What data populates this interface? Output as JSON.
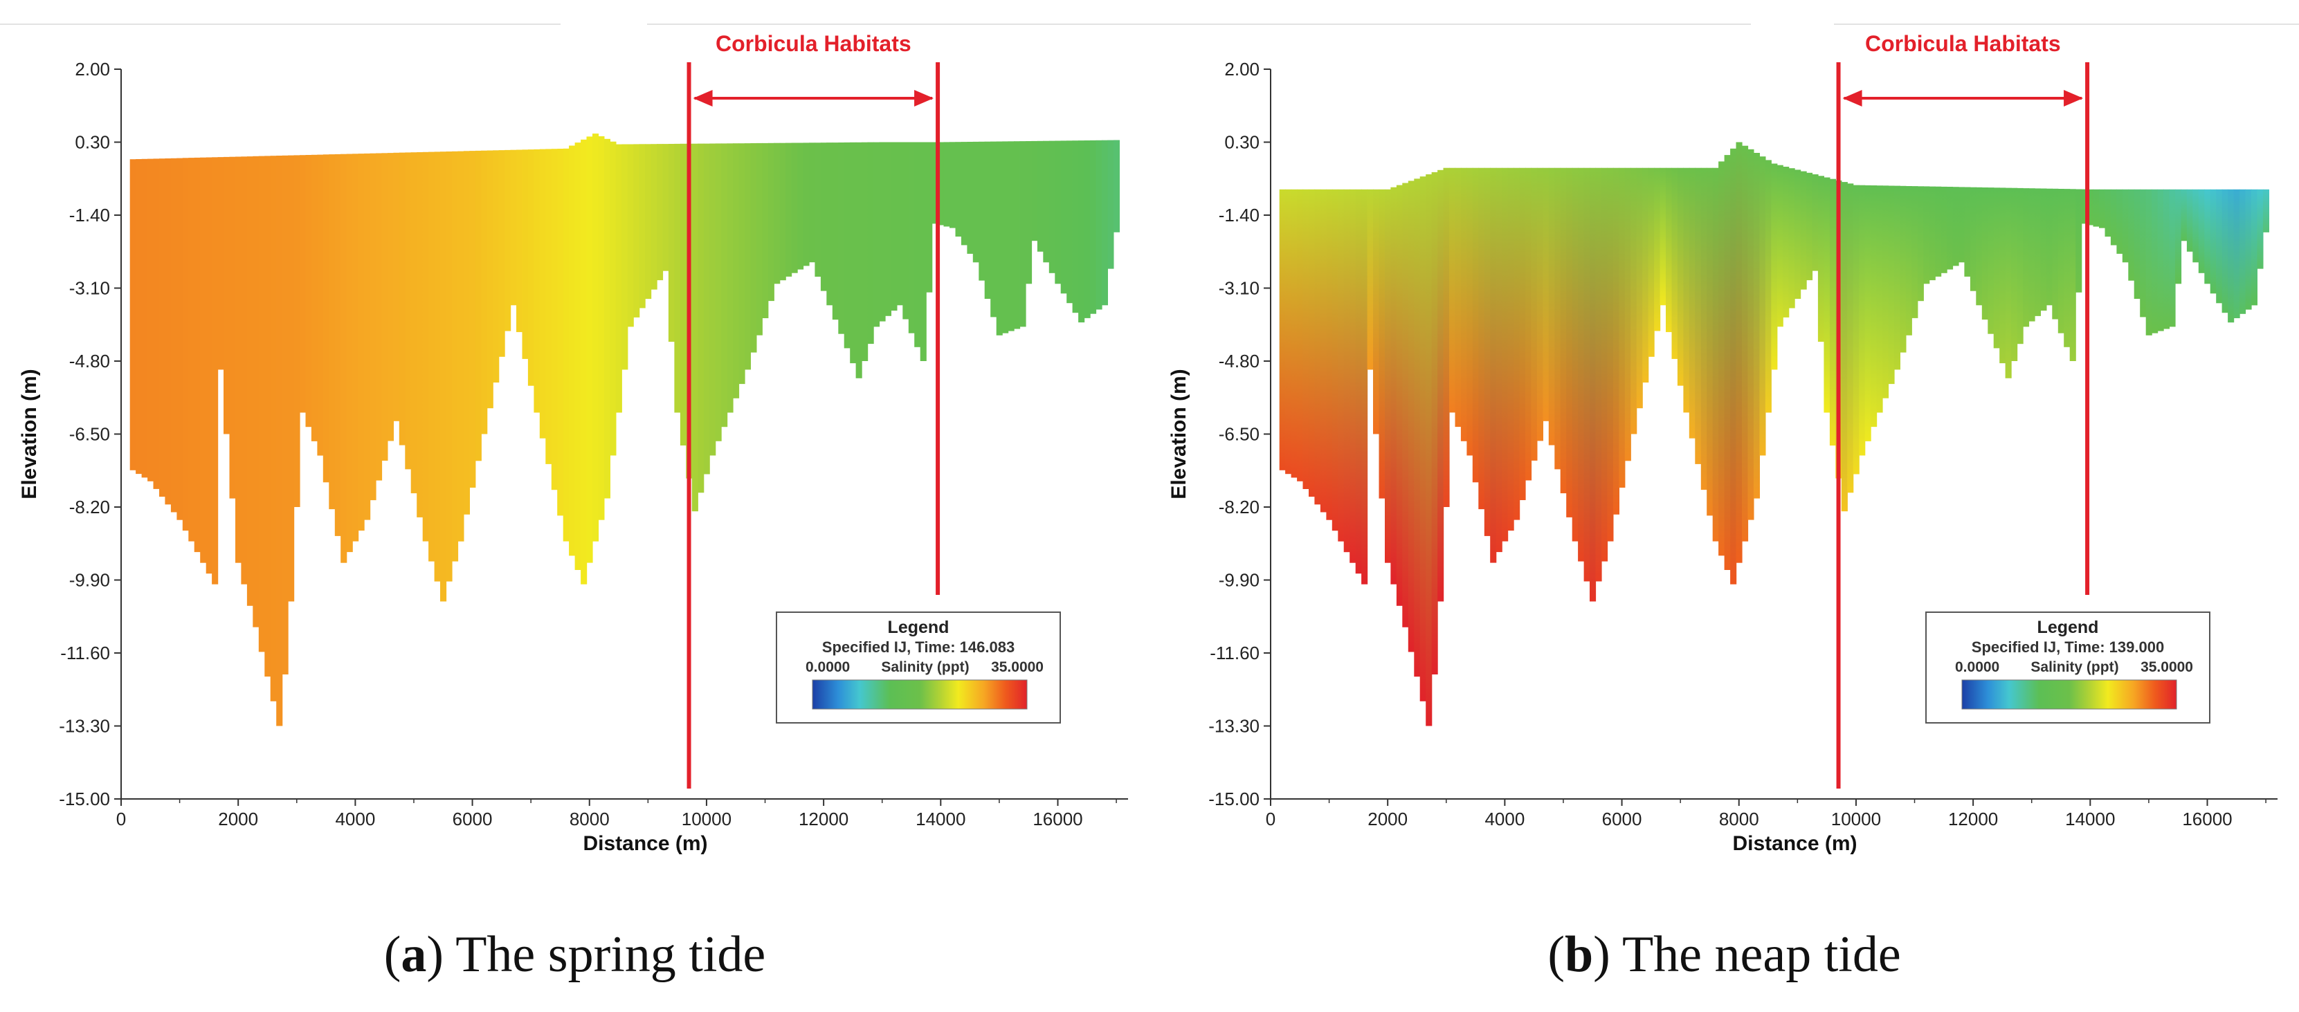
{
  "chart_data": [
    {
      "id": "a",
      "type": "heatmap",
      "caption_letter": "a",
      "caption_text": " The spring tide",
      "xlabel": "Distance (m)",
      "ylabel": "Elevation (m)",
      "xlim": [
        0,
        17200
      ],
      "ylim": [
        -15.0,
        2.0
      ],
      "xticks": [
        0,
        2000,
        4000,
        6000,
        8000,
        10000,
        12000,
        14000,
        16000
      ],
      "yticks": [
        "2.00",
        "0.30",
        "-1.40",
        "-3.10",
        "-4.80",
        "-6.50",
        "-8.20",
        "-9.90",
        "-11.60",
        "-13.30",
        "-15.00"
      ],
      "annotation": "Corbicula Habitats",
      "habitat_range_m": [
        9700,
        13950
      ],
      "legend": {
        "title": "Legend",
        "subtitle": "Specified IJ, Time: 146.083",
        "min_label": "0.0000",
        "variable": "Salinity (ppt)",
        "max_label": "35.0000"
      },
      "color_range": [
        0,
        35
      ],
      "surface_profile": [
        [
          150,
          -0.1
        ],
        [
          7600,
          0.15
        ],
        [
          8100,
          0.5
        ],
        [
          8500,
          0.25
        ],
        [
          13000,
          0.3
        ],
        [
          14000,
          0.3
        ],
        [
          17100,
          0.35
        ]
      ],
      "bottom_profile": [
        [
          150,
          -7.3
        ],
        [
          500,
          -7.6
        ],
        [
          1000,
          -8.5
        ],
        [
          1600,
          -10.0
        ],
        [
          1700,
          -5.0
        ],
        [
          2000,
          -9.5
        ],
        [
          2300,
          -11.0
        ],
        [
          2700,
          -13.3
        ],
        [
          2850,
          -11.5
        ],
        [
          3100,
          -6.0
        ],
        [
          3400,
          -7.0
        ],
        [
          3800,
          -9.5
        ],
        [
          4200,
          -8.5
        ],
        [
          4700,
          -6.2
        ],
        [
          5200,
          -9.0
        ],
        [
          5500,
          -10.4
        ],
        [
          5800,
          -9.0
        ],
        [
          6200,
          -6.5
        ],
        [
          6700,
          -3.5
        ],
        [
          7100,
          -6.0
        ],
        [
          7600,
          -9.0
        ],
        [
          7900,
          -10.0
        ],
        [
          8300,
          -8.0
        ],
        [
          8700,
          -4.0
        ],
        [
          9300,
          -2.7
        ],
        [
          9500,
          -6.0
        ],
        [
          9800,
          -8.3
        ],
        [
          10100,
          -7.0
        ],
        [
          10700,
          -5.0
        ],
        [
          11200,
          -3.0
        ],
        [
          11800,
          -2.5
        ],
        [
          12400,
          -4.5
        ],
        [
          12600,
          -5.2
        ],
        [
          12900,
          -4.0
        ],
        [
          13300,
          -3.5
        ],
        [
          13700,
          -4.8
        ],
        [
          13900,
          -1.6
        ],
        [
          14200,
          -1.7
        ],
        [
          14600,
          -2.5
        ],
        [
          15000,
          -4.2
        ],
        [
          15400,
          -4.0
        ],
        [
          15600,
          -2.0
        ],
        [
          16000,
          -3.0
        ],
        [
          16400,
          -3.9
        ],
        [
          16800,
          -3.5
        ],
        [
          17000,
          -1.8
        ]
      ],
      "salinity_stops": [
        {
          "distance": 0,
          "salinity": 29.5
        },
        {
          "distance": 3000,
          "salinity": 28.8
        },
        {
          "distance": 6000,
          "salinity": 26.5
        },
        {
          "distance": 8200,
          "salinity": 23.5
        },
        {
          "distance": 10000,
          "salinity": 20.0
        },
        {
          "distance": 12000,
          "salinity": 17.0
        },
        {
          "distance": 14000,
          "salinity": 15.5
        },
        {
          "distance": 15500,
          "salinity": 15.0
        },
        {
          "distance": 17000,
          "salinity": 11.5
        }
      ],
      "salinity_depth_gradient": 0
    },
    {
      "id": "b",
      "type": "heatmap",
      "caption_letter": "b",
      "caption_text": " The neap tide",
      "xlabel": "Distance (m)",
      "ylabel": "Elevation (m)",
      "xlim": [
        0,
        17200
      ],
      "ylim": [
        -15.0,
        2.0
      ],
      "xticks": [
        0,
        2000,
        4000,
        6000,
        8000,
        10000,
        12000,
        14000,
        16000
      ],
      "yticks": [
        "2.00",
        "0.30",
        "-1.40",
        "-3.10",
        "-4.80",
        "-6.50",
        "-8.20",
        "-9.90",
        "-11.60",
        "-13.30",
        "-15.00"
      ],
      "annotation": "Corbicula Habitats",
      "habitat_range_m": [
        9700,
        13950
      ],
      "legend": {
        "title": "Legend",
        "subtitle": "Specified IJ, Time: 139.000",
        "min_label": "0.0000",
        "variable": "Salinity (ppt)",
        "max_label": "35.0000"
      },
      "color_range": [
        0,
        35
      ],
      "surface_profile": [
        [
          150,
          -0.8
        ],
        [
          2000,
          -0.8
        ],
        [
          3000,
          -0.3
        ],
        [
          7600,
          -0.3
        ],
        [
          8000,
          0.3
        ],
        [
          8600,
          -0.2
        ],
        [
          10000,
          -0.7
        ],
        [
          14000,
          -0.8
        ],
        [
          17100,
          -0.8
        ]
      ],
      "bottom_profile": [
        [
          150,
          -7.3
        ],
        [
          500,
          -7.6
        ],
        [
          1000,
          -8.5
        ],
        [
          1600,
          -10.0
        ],
        [
          1700,
          -5.0
        ],
        [
          2000,
          -9.5
        ],
        [
          2300,
          -11.0
        ],
        [
          2700,
          -13.3
        ],
        [
          2850,
          -11.5
        ],
        [
          3100,
          -6.0
        ],
        [
          3400,
          -7.0
        ],
        [
          3800,
          -9.5
        ],
        [
          4200,
          -8.5
        ],
        [
          4700,
          -6.2
        ],
        [
          5200,
          -9.0
        ],
        [
          5500,
          -10.4
        ],
        [
          5800,
          -9.0
        ],
        [
          6200,
          -6.5
        ],
        [
          6700,
          -3.5
        ],
        [
          7100,
          -6.0
        ],
        [
          7600,
          -9.0
        ],
        [
          7900,
          -10.0
        ],
        [
          8300,
          -8.0
        ],
        [
          8700,
          -4.0
        ],
        [
          9300,
          -2.7
        ],
        [
          9500,
          -6.0
        ],
        [
          9800,
          -8.3
        ],
        [
          10100,
          -7.0
        ],
        [
          10700,
          -5.0
        ],
        [
          11200,
          -3.0
        ],
        [
          11800,
          -2.5
        ],
        [
          12400,
          -4.5
        ],
        [
          12600,
          -5.2
        ],
        [
          12900,
          -4.0
        ],
        [
          13300,
          -3.5
        ],
        [
          13700,
          -4.8
        ],
        [
          13900,
          -1.6
        ],
        [
          14200,
          -1.7
        ],
        [
          14600,
          -2.5
        ],
        [
          15000,
          -4.2
        ],
        [
          15400,
          -4.0
        ],
        [
          15600,
          -2.0
        ],
        [
          16000,
          -3.0
        ],
        [
          16400,
          -3.9
        ],
        [
          16800,
          -3.5
        ],
        [
          17000,
          -1.8
        ]
      ],
      "salinity_stops": [
        {
          "distance": 0,
          "salinity": 24.0
        },
        {
          "distance": 3000,
          "salinity": 22.5
        },
        {
          "distance": 6000,
          "salinity": 20.5
        },
        {
          "distance": 8500,
          "salinity": 18.0
        },
        {
          "distance": 10000,
          "salinity": 16.0
        },
        {
          "distance": 12000,
          "salinity": 15.0
        },
        {
          "distance": 14000,
          "salinity": 14.5
        },
        {
          "distance": 15000,
          "salinity": 13.0
        },
        {
          "distance": 16500,
          "salinity": 8.0
        },
        {
          "distance": 17000,
          "salinity": 10.0
        }
      ],
      "salinity_depth_gradient": 1.3
    }
  ]
}
